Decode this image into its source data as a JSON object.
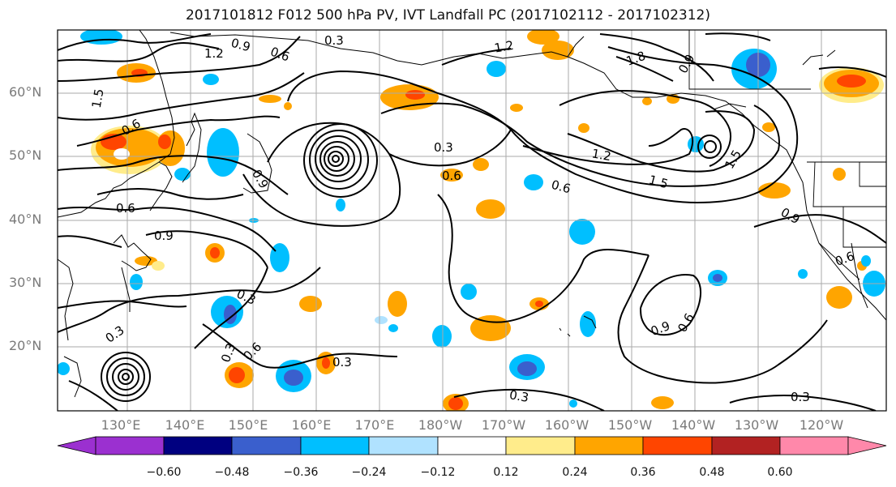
{
  "title": "2017101812 F012 500 hPa PV, IVT Landfall PC (2017102112 - 2017102312)",
  "latitude_labels": [
    "60°N",
    "50°N",
    "40°N",
    "30°N",
    "20°N"
  ],
  "longitude_labels": [
    "130°E",
    "140°E",
    "150°E",
    "160°E",
    "170°E",
    "180°W",
    "170°W",
    "160°W",
    "150°W",
    "140°W",
    "130°W",
    "120°W"
  ],
  "contour_labels": [
    "0.3",
    "0.3",
    "0.3",
    "0.3",
    "0.3",
    "0.3",
    "0.3",
    "0.3",
    "0.6",
    "0.6",
    "0.6",
    "0.6",
    "0.6",
    "0.6",
    "0.6",
    "0.6",
    "0.9",
    "0.9",
    "0.9",
    "0.9",
    "0.9",
    "0.9",
    "1.2",
    "1.2",
    "1.2",
    "1.5",
    "1.5",
    "1.5",
    "1.8"
  ],
  "colorbar": {
    "tick_labels": [
      "−0.60",
      "−0.48",
      "−0.36",
      "−0.24",
      "−0.12",
      "0.12",
      "0.24",
      "0.36",
      "0.48",
      "0.60"
    ],
    "colors": [
      "#9b30d0",
      "#000080",
      "#3a5fcd",
      "#00bfff",
      "#b0e2ff",
      "#ffffff",
      "#ffec8b",
      "#ffa500",
      "#ff4500",
      "#b22222",
      "#ff88aa"
    ]
  },
  "shading_colors": {
    "neg_light": "#b0e2ff",
    "neg_cyan": "#00bfff",
    "neg_blue": "#3a5fcd",
    "pos_yellow": "#ffec8b",
    "pos_orange": "#ffa500",
    "pos_red": "#ff4500",
    "pos_darkred": "#b22222"
  }
}
